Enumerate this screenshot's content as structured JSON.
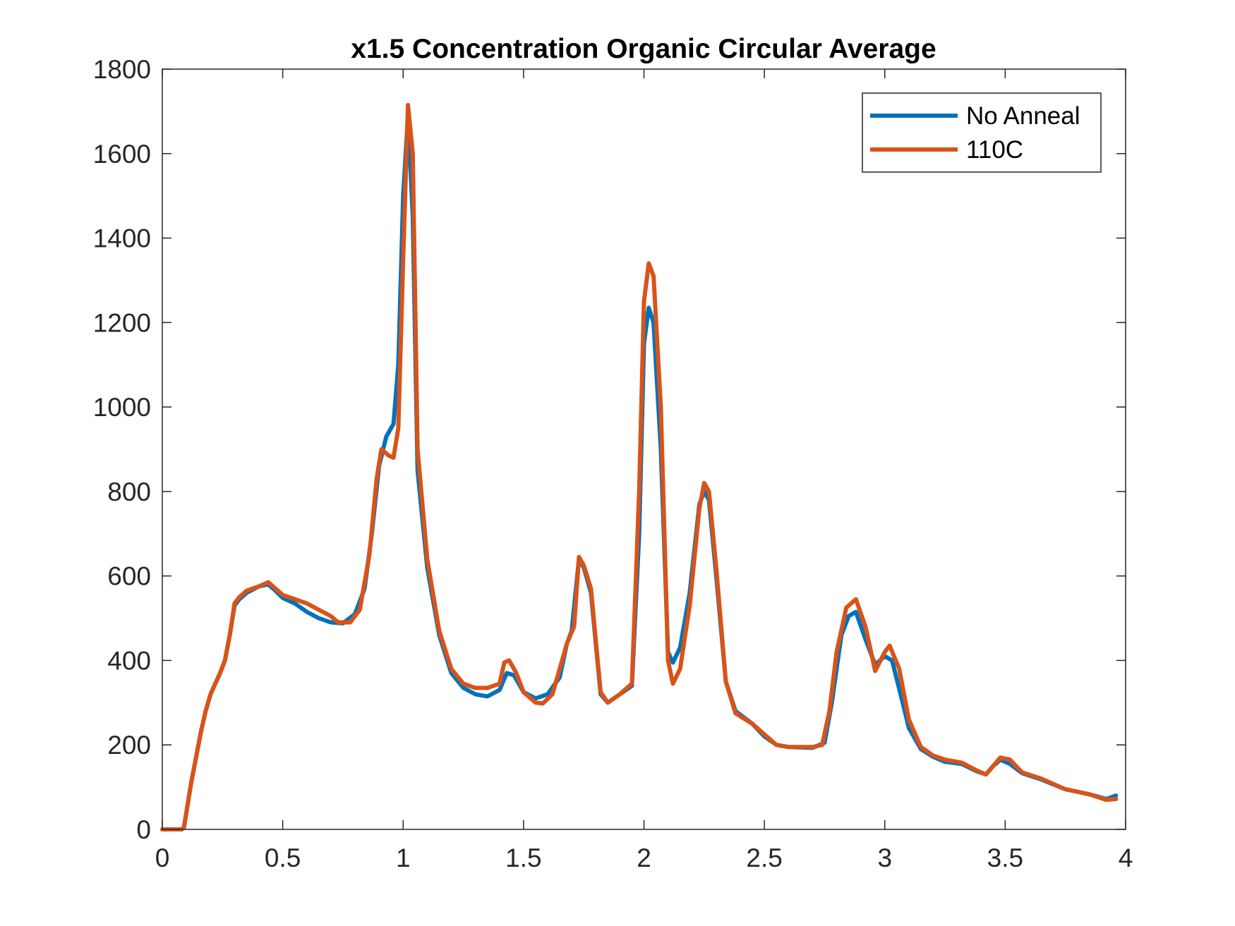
{
  "chart_data": {
    "type": "line",
    "title": "x1.5 Concentration Organic Circular Average",
    "xlabel": "",
    "ylabel": "",
    "xlim": [
      0,
      4
    ],
    "ylim": [
      0,
      1800
    ],
    "x_ticks": [
      "0",
      "0.5",
      "1",
      "1.5",
      "2",
      "2.5",
      "3",
      "3.5",
      "4"
    ],
    "y_ticks": [
      "0",
      "200",
      "400",
      "600",
      "800",
      "1000",
      "1200",
      "1400",
      "1600",
      "1800"
    ],
    "grid": false,
    "legend_position": "top-right",
    "series": [
      {
        "name": "No Anneal",
        "color": "#0072BD",
        "points": [
          [
            0.0,
            0
          ],
          [
            0.08,
            0
          ],
          [
            0.09,
            5
          ],
          [
            0.1,
            40
          ],
          [
            0.12,
            110
          ],
          [
            0.14,
            170
          ],
          [
            0.16,
            230
          ],
          [
            0.18,
            280
          ],
          [
            0.2,
            320
          ],
          [
            0.22,
            345
          ],
          [
            0.24,
            370
          ],
          [
            0.26,
            400
          ],
          [
            0.28,
            460
          ],
          [
            0.3,
            530
          ],
          [
            0.32,
            545
          ],
          [
            0.35,
            560
          ],
          [
            0.4,
            575
          ],
          [
            0.44,
            580
          ],
          [
            0.47,
            565
          ],
          [
            0.5,
            548
          ],
          [
            0.55,
            535
          ],
          [
            0.6,
            515
          ],
          [
            0.65,
            500
          ],
          [
            0.7,
            490
          ],
          [
            0.75,
            488
          ],
          [
            0.8,
            510
          ],
          [
            0.84,
            570
          ],
          [
            0.87,
            700
          ],
          [
            0.9,
            860
          ],
          [
            0.93,
            930
          ],
          [
            0.96,
            960
          ],
          [
            0.98,
            1100
          ],
          [
            1.0,
            1500
          ],
          [
            1.02,
            1690
          ],
          [
            1.04,
            1450
          ],
          [
            1.06,
            850
          ],
          [
            1.1,
            620
          ],
          [
            1.15,
            460
          ],
          [
            1.2,
            370
          ],
          [
            1.25,
            335
          ],
          [
            1.3,
            320
          ],
          [
            1.35,
            315
          ],
          [
            1.4,
            330
          ],
          [
            1.43,
            370
          ],
          [
            1.46,
            365
          ],
          [
            1.5,
            325
          ],
          [
            1.55,
            310
          ],
          [
            1.6,
            320
          ],
          [
            1.65,
            360
          ],
          [
            1.68,
            440
          ],
          [
            1.7,
            470
          ],
          [
            1.73,
            640
          ],
          [
            1.75,
            620
          ],
          [
            1.78,
            560
          ],
          [
            1.82,
            320
          ],
          [
            1.85,
            300
          ],
          [
            1.9,
            320
          ],
          [
            1.95,
            340
          ],
          [
            1.98,
            700
          ],
          [
            2.0,
            1150
          ],
          [
            2.02,
            1235
          ],
          [
            2.04,
            1200
          ],
          [
            2.07,
            900
          ],
          [
            2.1,
            420
          ],
          [
            2.12,
            395
          ],
          [
            2.15,
            430
          ],
          [
            2.19,
            560
          ],
          [
            2.23,
            770
          ],
          [
            2.25,
            800
          ],
          [
            2.27,
            780
          ],
          [
            2.3,
            600
          ],
          [
            2.34,
            350
          ],
          [
            2.38,
            280
          ],
          [
            2.45,
            250
          ],
          [
            2.5,
            220
          ],
          [
            2.55,
            200
          ],
          [
            2.6,
            195
          ],
          [
            2.7,
            193
          ],
          [
            2.75,
            205
          ],
          [
            2.78,
            300
          ],
          [
            2.82,
            460
          ],
          [
            2.85,
            505
          ],
          [
            2.88,
            515
          ],
          [
            2.92,
            450
          ],
          [
            2.96,
            390
          ],
          [
            3.0,
            410
          ],
          [
            3.03,
            400
          ],
          [
            3.07,
            310
          ],
          [
            3.1,
            240
          ],
          [
            3.15,
            190
          ],
          [
            3.2,
            172
          ],
          [
            3.25,
            160
          ],
          [
            3.32,
            155
          ],
          [
            3.38,
            138
          ],
          [
            3.42,
            130
          ],
          [
            3.45,
            150
          ],
          [
            3.48,
            165
          ],
          [
            3.52,
            155
          ],
          [
            3.57,
            133
          ],
          [
            3.65,
            118
          ],
          [
            3.75,
            95
          ],
          [
            3.85,
            83
          ],
          [
            3.92,
            72
          ],
          [
            3.96,
            80
          ]
        ]
      },
      {
        "name": "110C",
        "color": "#D95319",
        "points": [
          [
            0.0,
            0
          ],
          [
            0.08,
            0
          ],
          [
            0.09,
            5
          ],
          [
            0.1,
            40
          ],
          [
            0.12,
            110
          ],
          [
            0.14,
            170
          ],
          [
            0.16,
            230
          ],
          [
            0.18,
            280
          ],
          [
            0.2,
            320
          ],
          [
            0.22,
            345
          ],
          [
            0.24,
            370
          ],
          [
            0.26,
            400
          ],
          [
            0.28,
            460
          ],
          [
            0.3,
            535
          ],
          [
            0.32,
            550
          ],
          [
            0.35,
            565
          ],
          [
            0.4,
            575
          ],
          [
            0.44,
            585
          ],
          [
            0.47,
            570
          ],
          [
            0.5,
            555
          ],
          [
            0.55,
            545
          ],
          [
            0.6,
            535
          ],
          [
            0.65,
            520
          ],
          [
            0.7,
            505
          ],
          [
            0.73,
            490
          ],
          [
            0.78,
            490
          ],
          [
            0.82,
            520
          ],
          [
            0.86,
            650
          ],
          [
            0.89,
            830
          ],
          [
            0.91,
            900
          ],
          [
            0.94,
            885
          ],
          [
            0.96,
            880
          ],
          [
            0.98,
            950
          ],
          [
            1.0,
            1350
          ],
          [
            1.02,
            1715
          ],
          [
            1.04,
            1600
          ],
          [
            1.06,
            900
          ],
          [
            1.1,
            640
          ],
          [
            1.15,
            470
          ],
          [
            1.2,
            380
          ],
          [
            1.25,
            345
          ],
          [
            1.3,
            335
          ],
          [
            1.35,
            335
          ],
          [
            1.4,
            345
          ],
          [
            1.42,
            395
          ],
          [
            1.44,
            400
          ],
          [
            1.47,
            370
          ],
          [
            1.5,
            325
          ],
          [
            1.55,
            300
          ],
          [
            1.58,
            298
          ],
          [
            1.62,
            320
          ],
          [
            1.65,
            380
          ],
          [
            1.68,
            440
          ],
          [
            1.71,
            480
          ],
          [
            1.73,
            645
          ],
          [
            1.75,
            625
          ],
          [
            1.78,
            570
          ],
          [
            1.82,
            325
          ],
          [
            1.85,
            300
          ],
          [
            1.9,
            320
          ],
          [
            1.95,
            345
          ],
          [
            1.98,
            800
          ],
          [
            2.0,
            1250
          ],
          [
            2.02,
            1340
          ],
          [
            2.04,
            1310
          ],
          [
            2.07,
            1000
          ],
          [
            2.1,
            400
          ],
          [
            2.12,
            345
          ],
          [
            2.15,
            380
          ],
          [
            2.19,
            530
          ],
          [
            2.23,
            760
          ],
          [
            2.25,
            820
          ],
          [
            2.27,
            800
          ],
          [
            2.3,
            620
          ],
          [
            2.34,
            350
          ],
          [
            2.38,
            275
          ],
          [
            2.45,
            250
          ],
          [
            2.5,
            225
          ],
          [
            2.55,
            200
          ],
          [
            2.6,
            195
          ],
          [
            2.7,
            195
          ],
          [
            2.74,
            200
          ],
          [
            2.77,
            280
          ],
          [
            2.8,
            420
          ],
          [
            2.84,
            525
          ],
          [
            2.88,
            545
          ],
          [
            2.92,
            480
          ],
          [
            2.96,
            375
          ],
          [
            3.0,
            420
          ],
          [
            3.02,
            435
          ],
          [
            3.06,
            380
          ],
          [
            3.1,
            260
          ],
          [
            3.15,
            195
          ],
          [
            3.2,
            175
          ],
          [
            3.25,
            165
          ],
          [
            3.32,
            158
          ],
          [
            3.38,
            140
          ],
          [
            3.42,
            130
          ],
          [
            3.45,
            150
          ],
          [
            3.48,
            170
          ],
          [
            3.52,
            165
          ],
          [
            3.57,
            135
          ],
          [
            3.65,
            120
          ],
          [
            3.75,
            95
          ],
          [
            3.85,
            83
          ],
          [
            3.92,
            70
          ],
          [
            3.96,
            72
          ]
        ]
      }
    ]
  }
}
